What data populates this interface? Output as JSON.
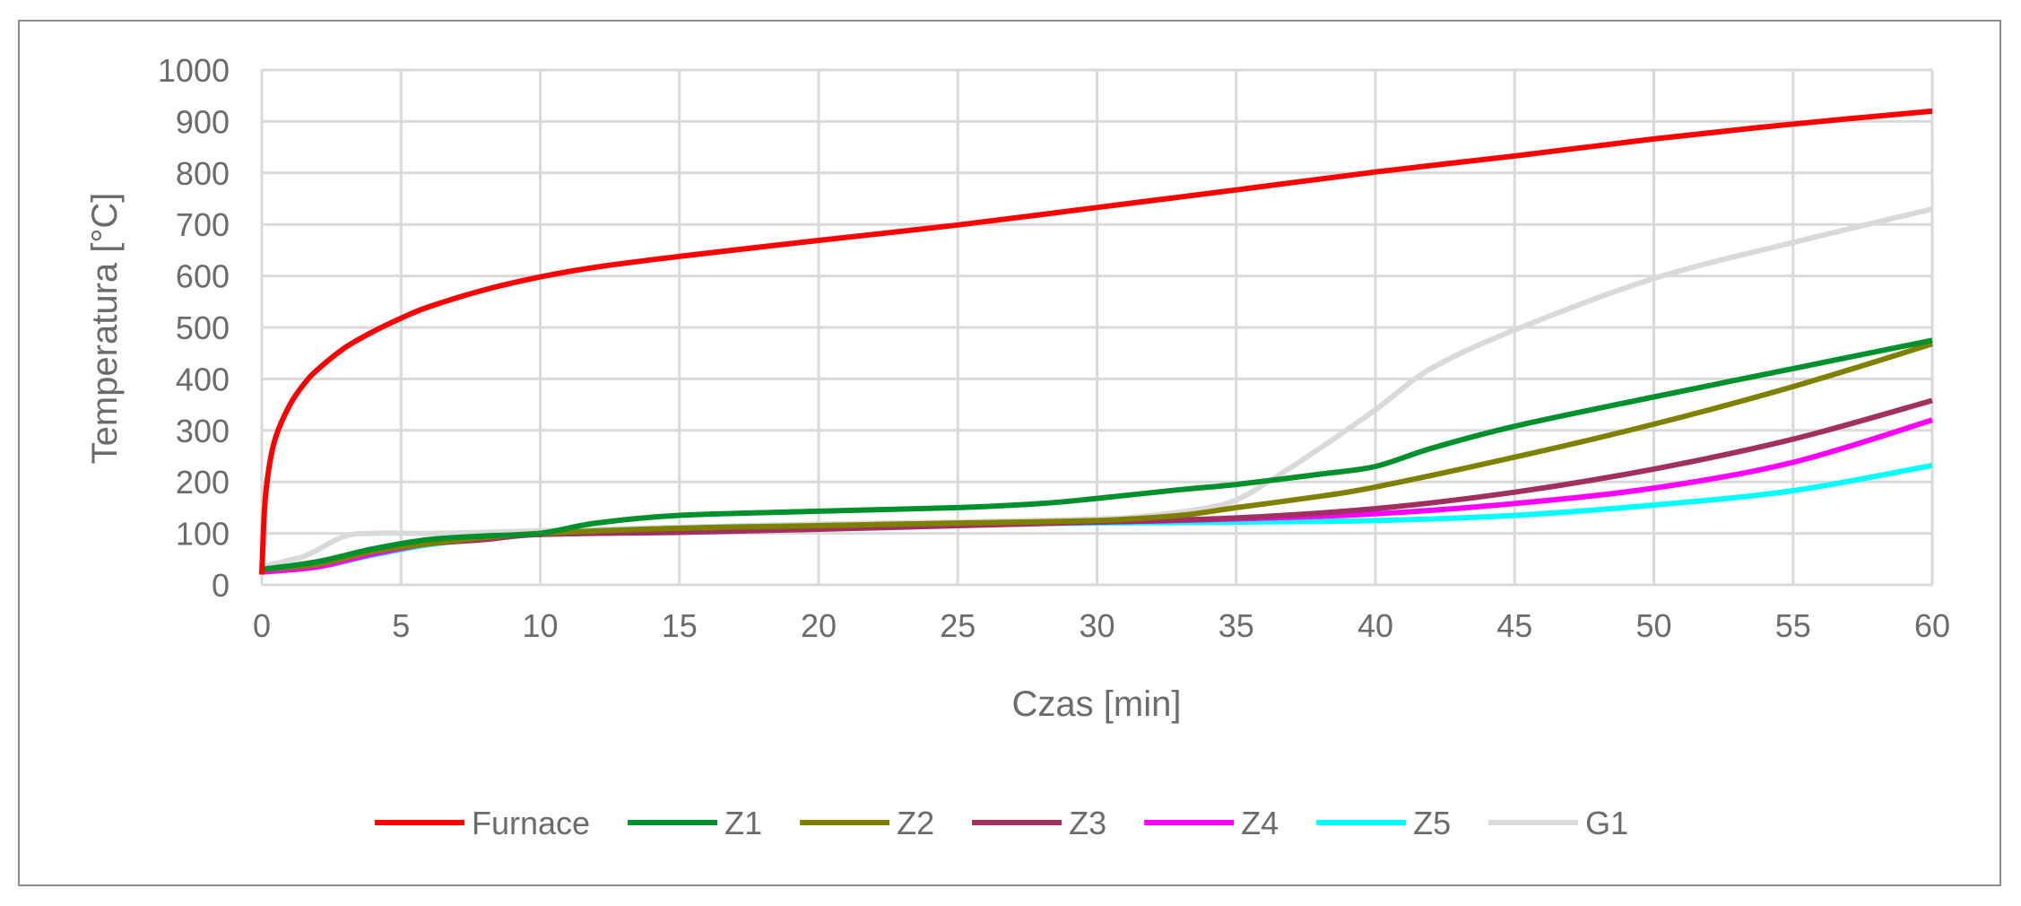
{
  "chart_data": {
    "type": "line",
    "xlabel": "Czas [min]",
    "ylabel": "Temperatura [°C]",
    "xlim": [
      0,
      60
    ],
    "ylim": [
      0,
      1000
    ],
    "xticks": [
      0,
      5,
      10,
      15,
      20,
      25,
      30,
      35,
      40,
      45,
      50,
      55,
      60
    ],
    "yticks": [
      0,
      100,
      200,
      300,
      400,
      500,
      600,
      700,
      800,
      900,
      1000
    ],
    "grid": true,
    "legend_position": "bottom",
    "series": [
      {
        "name": "Furnace",
        "color": "#ff0000",
        "x": [
          0,
          0.1,
          0.25,
          0.5,
          1,
          1.5,
          2,
          3,
          4,
          5,
          6,
          8,
          10,
          12,
          15,
          20,
          25,
          30,
          35,
          40,
          45,
          50,
          55,
          60
        ],
        "y": [
          20,
          150,
          225,
          287,
          349,
          389,
          418,
          461,
          492,
          518,
          540,
          573,
          598,
          617,
          638,
          669,
          699,
          733,
          767,
          802,
          833,
          866,
          895,
          920
        ]
      },
      {
        "name": "Z1",
        "color": "#00912c",
        "x": [
          0,
          2,
          4,
          6,
          8,
          10,
          12,
          15,
          20,
          25,
          28,
          30,
          33,
          35,
          38,
          40,
          42,
          45,
          50,
          55,
          60
        ],
        "y": [
          30,
          45,
          70,
          88,
          95,
          100,
          120,
          135,
          143,
          150,
          158,
          168,
          185,
          195,
          215,
          230,
          265,
          308,
          365,
          420,
          475
        ]
      },
      {
        "name": "Z2",
        "color": "#808000",
        "x": [
          0,
          2,
          4,
          6,
          8,
          10,
          15,
          20,
          25,
          30,
          33,
          35,
          38,
          40,
          45,
          50,
          55,
          60
        ],
        "y": [
          30,
          40,
          65,
          80,
          92,
          100,
          110,
          115,
          120,
          125,
          135,
          150,
          172,
          190,
          248,
          312,
          385,
          468
        ]
      },
      {
        "name": "Z3",
        "color": "#a0305f",
        "x": [
          0,
          2,
          4,
          6,
          8,
          10,
          15,
          20,
          25,
          30,
          35,
          40,
          45,
          50,
          55,
          60
        ],
        "y": [
          28,
          45,
          65,
          80,
          88,
          98,
          102,
          108,
          115,
          122,
          130,
          148,
          180,
          225,
          283,
          358
        ]
      },
      {
        "name": "Z4",
        "color": "#ff00ff",
        "x": [
          0,
          2,
          4,
          6,
          8,
          10,
          15,
          20,
          25,
          30,
          35,
          40,
          45,
          50,
          55,
          60
        ],
        "y": [
          25,
          35,
          60,
          80,
          90,
          98,
          103,
          110,
          118,
          122,
          128,
          138,
          158,
          188,
          238,
          320
        ]
      },
      {
        "name": "Z5",
        "color": "#00ffff",
        "x": [
          0,
          2,
          4,
          6,
          8,
          10,
          15,
          20,
          25,
          30,
          35,
          40,
          45,
          50,
          55,
          60
        ],
        "y": [
          25,
          35,
          58,
          78,
          90,
          100,
          110,
          115,
          118,
          120,
          122,
          125,
          135,
          155,
          183,
          232
        ]
      },
      {
        "name": "G1",
        "color": "#d9d9d9",
        "x": [
          0,
          1,
          1.5,
          2,
          3,
          4,
          6,
          8,
          10,
          15,
          20,
          25,
          30,
          32,
          34,
          35,
          36,
          38,
          40,
          42,
          45,
          50,
          55,
          60
        ],
        "y": [
          35,
          48,
          55,
          68,
          95,
          100,
          100,
          102,
          105,
          112,
          118,
          122,
          128,
          135,
          150,
          165,
          195,
          265,
          340,
          420,
          495,
          595,
          665,
          730
        ]
      }
    ]
  }
}
